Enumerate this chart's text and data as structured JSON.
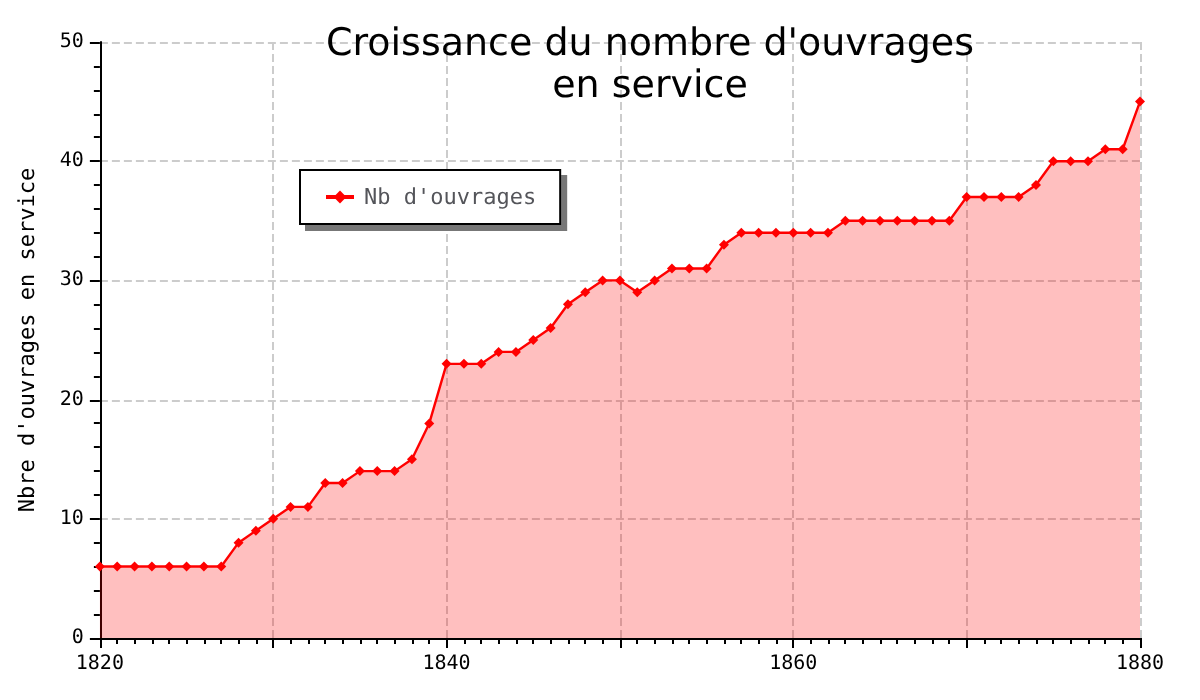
{
  "chart_data": {
    "type": "area",
    "title": "Croissance du nombre d'ouvrages\nen service",
    "ylabel": "Nbre d'ouvrages en service",
    "x": [
      1820,
      1821,
      1822,
      1823,
      1824,
      1825,
      1826,
      1827,
      1828,
      1829,
      1830,
      1831,
      1832,
      1833,
      1834,
      1835,
      1836,
      1837,
      1838,
      1839,
      1840,
      1841,
      1842,
      1843,
      1844,
      1845,
      1846,
      1847,
      1848,
      1849,
      1850,
      1851,
      1852,
      1853,
      1854,
      1855,
      1856,
      1857,
      1858,
      1859,
      1860,
      1861,
      1862,
      1863,
      1864,
      1865,
      1866,
      1867,
      1868,
      1869,
      1870,
      1871,
      1872,
      1873,
      1874,
      1875,
      1876,
      1877,
      1878,
      1879,
      1880
    ],
    "series": [
      {
        "name": "Nb d'ouvrages",
        "color": "#ff0000",
        "values": [
          6,
          6,
          6,
          6,
          6,
          6,
          6,
          6,
          8,
          9,
          10,
          11,
          11,
          13,
          13,
          14,
          14,
          14,
          15,
          18,
          23,
          23,
          23,
          24,
          24,
          25,
          26,
          28,
          29,
          30,
          30,
          29,
          30,
          31,
          31,
          31,
          33,
          34,
          34,
          34,
          34,
          34,
          34,
          35,
          35,
          35,
          35,
          35,
          35,
          35,
          37,
          37,
          37,
          37,
          38,
          40,
          40,
          40,
          41,
          41,
          45
        ]
      }
    ],
    "xlim": [
      1820,
      1880
    ],
    "xticks": [
      1820,
      {
        "value": 1830,
        "label": null
      },
      1840,
      {
        "value": 1850,
        "label": null
      },
      1860,
      {
        "value": 1870,
        "label": null
      },
      1880
    ],
    "ylim": [
      0,
      50
    ],
    "yticks": [
      0,
      10,
      20,
      30,
      40,
      50
    ],
    "grid": true,
    "legend": "top left",
    "marker": "diamond",
    "line_style": "solid"
  }
}
